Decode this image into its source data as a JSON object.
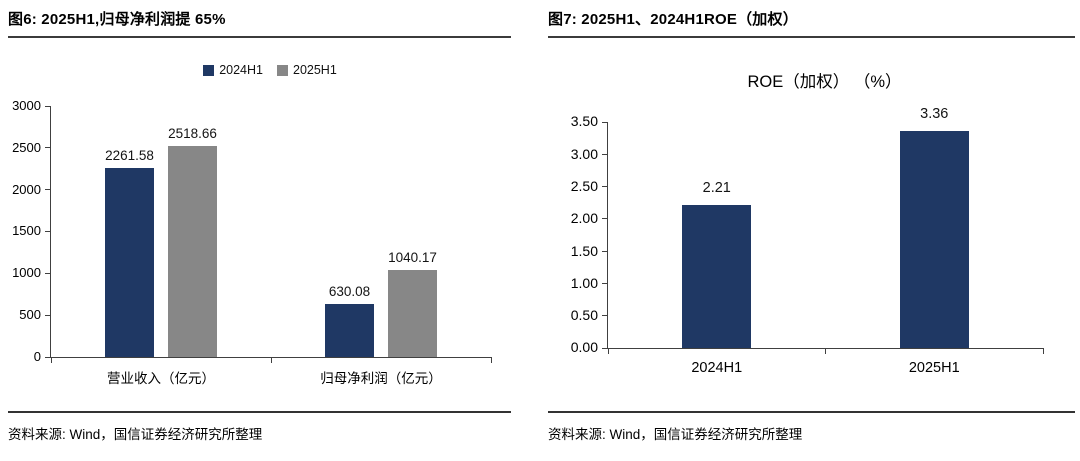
{
  "panels": [
    {
      "title": "图6: 2025H1,归母净利润提 65%",
      "source": "资料来源: Wind，国信证券经济研究所整理"
    },
    {
      "title": "图7: 2025H1、2024H1ROE（加权）",
      "source": "资料来源: Wind，国信证券经济研究所整理"
    }
  ],
  "colors": {
    "navy": "#1F3864",
    "gray": "#878787",
    "axis": "#404040",
    "text": "#000000"
  },
  "chart_data": [
    {
      "type": "bar",
      "title": "",
      "categories": [
        "营业收入（亿元）",
        "归母净利润（亿元）"
      ],
      "series": [
        {
          "name": "2024H1",
          "color": "#1F3864",
          "values": [
            2261.58,
            630.08
          ],
          "labels": [
            "2261.58",
            "630.08"
          ]
        },
        {
          "name": "2025H1",
          "color": "#878787",
          "values": [
            2518.66,
            1040.17
          ],
          "labels": [
            "2518.66",
            "1040.17"
          ]
        }
      ],
      "ylim": [
        0,
        3000
      ],
      "yticks": [
        "3000",
        "2500",
        "2000",
        "1500",
        "1000",
        "500",
        "0"
      ],
      "grid": false,
      "legend_position": "top",
      "xlabel": "",
      "ylabel": ""
    },
    {
      "type": "bar",
      "title": "ROE（加权） （%）",
      "categories": [
        "2024H1",
        "2025H1"
      ],
      "series": [
        {
          "name": "ROE（加权）",
          "color": "#1F3864",
          "values": [
            2.21,
            3.36
          ],
          "labels": [
            "2.21",
            "3.36"
          ]
        }
      ],
      "ylim": [
        0,
        3.5
      ],
      "yticks": [
        "3.50",
        "3.00",
        "2.50",
        "2.00",
        "1.50",
        "1.00",
        "0.50",
        "0.00"
      ],
      "grid": false,
      "legend_position": "none",
      "xlabel": "",
      "ylabel": ""
    }
  ]
}
